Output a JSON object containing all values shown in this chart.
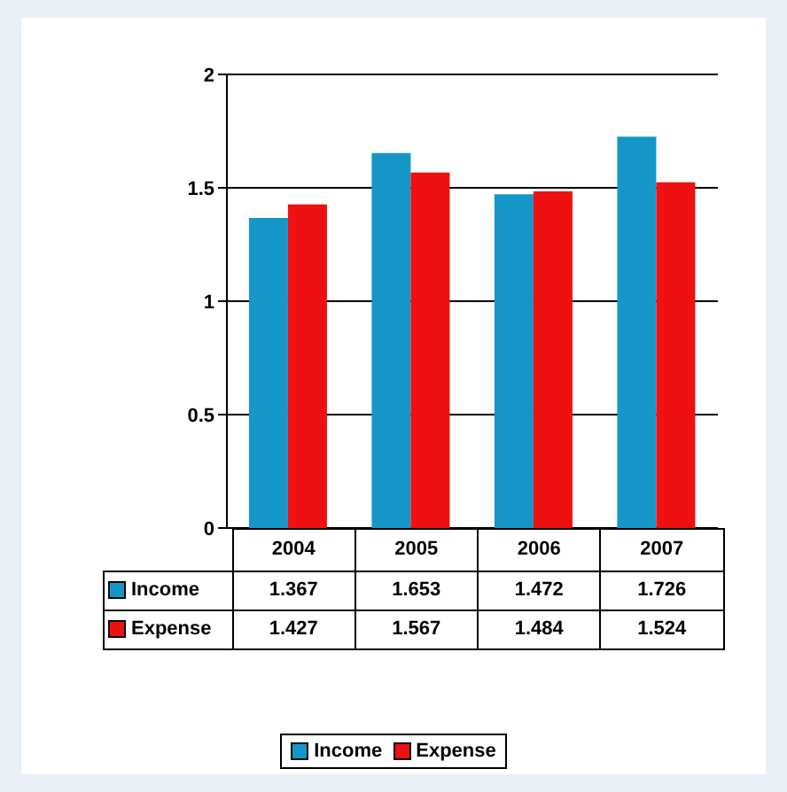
{
  "chart_data": {
    "type": "bar",
    "categories": [
      "2004",
      "2005",
      "2006",
      "2007"
    ],
    "series": [
      {
        "name": "Income",
        "color": "#1497c8",
        "values": [
          1.367,
          1.653,
          1.472,
          1.726
        ]
      },
      {
        "name": "Expense",
        "color": "#ee1111",
        "values": [
          1.427,
          1.567,
          1.484,
          1.524
        ]
      }
    ],
    "ylim": [
      0,
      2
    ],
    "yticks": [
      0,
      0.5,
      1,
      1.5,
      2
    ],
    "grid": "y",
    "legend": "bottom",
    "data_labels": true
  }
}
